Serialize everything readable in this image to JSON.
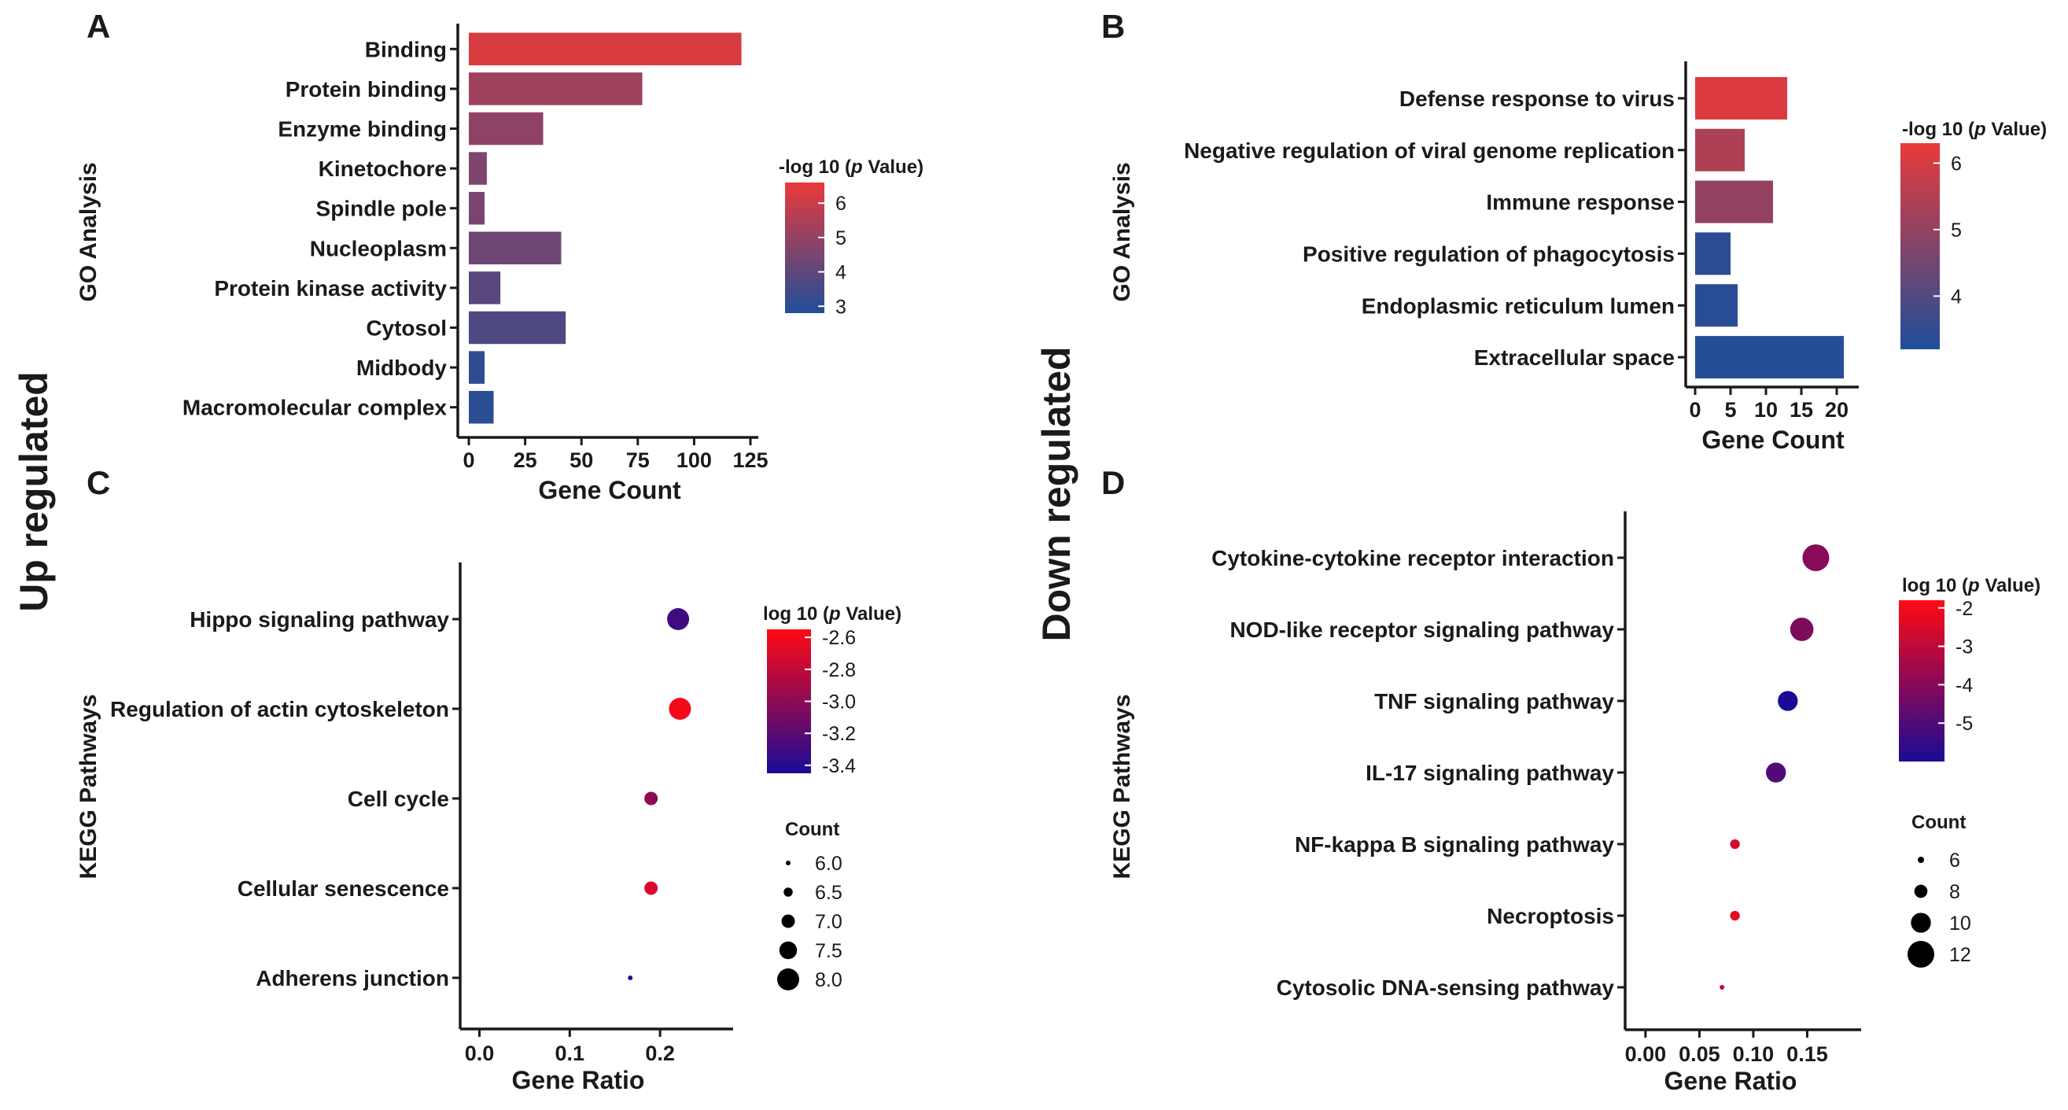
{
  "side_labels": {
    "up": {
      "text": "Up regulated",
      "color": "#ee2222"
    },
    "down": {
      "text": "Down regulated",
      "color": "#14306e"
    }
  },
  "panels": [
    {
      "letter": "A",
      "chart_data": {
        "type": "bar",
        "orientation": "horizontal",
        "categories": [
          "Binding",
          "Protein binding",
          "Enzyme binding",
          "Kinetochore",
          "Spindle pole",
          "Nucleoplasm",
          "Protein kinase activity",
          "Cytosol",
          "Midbody",
          "Macromolecular complex"
        ],
        "values": [
          121,
          77,
          33,
          8,
          7,
          41,
          14,
          43,
          7,
          11
        ],
        "color_values": [
          6.3,
          5.2,
          4.9,
          4.6,
          4.5,
          4.3,
          3.9,
          3.7,
          3.1,
          3.0
        ],
        "xlabel": "Gene Count",
        "ylabel": "GO Analysis",
        "xlim": [
          0,
          125
        ],
        "xticks": [
          0,
          25,
          50,
          75,
          100,
          125
        ],
        "legend": {
          "title_pre": "-log 10 (",
          "title_it": "p",
          "title_post": " Value)",
          "range": [
            2.8,
            6.6
          ],
          "ticks": [
            6,
            5,
            4,
            3
          ]
        },
        "colors": {
          "high": "#e83a3a",
          "low": "#1f4e99"
        }
      }
    },
    {
      "letter": "B",
      "chart_data": {
        "type": "bar",
        "orientation": "horizontal",
        "categories": [
          "Defense response to virus",
          "Negative regulation of viral genome replication",
          "Immune response",
          "Positive regulation of phagocytosis",
          "Endoplasmic reticulum lumen",
          "Extracellular space"
        ],
        "values": [
          13,
          7,
          11,
          5,
          6,
          21
        ],
        "color_values": [
          6.1,
          5.4,
          5.0,
          3.4,
          3.35,
          3.3
        ],
        "xlabel": "Gene Count",
        "ylabel": "GO Analysis",
        "xlim": [
          0,
          22
        ],
        "xticks": [
          0,
          5,
          10,
          15,
          20
        ],
        "legend": {
          "title_pre": "-log 10 (",
          "title_it": "p",
          "title_post": " Value)",
          "range": [
            3.2,
            6.3
          ],
          "ticks": [
            6,
            5,
            4
          ]
        },
        "colors": {
          "high": "#e83a3a",
          "low": "#1f4e99"
        }
      }
    },
    {
      "letter": "C",
      "chart_data": {
        "type": "scatter",
        "categories": [
          "Hippo signaling pathway",
          "Regulation of actin cytoskeleton",
          "Cell cycle",
          "Cellular senescence",
          "Adherens junction"
        ],
        "x": [
          0.22,
          0.222,
          0.19,
          0.19,
          0.167
        ],
        "color_values": [
          -3.3,
          -2.6,
          -3.0,
          -2.7,
          -3.4
        ],
        "counts": [
          8.0,
          8.0,
          7.0,
          7.0,
          6.0
        ],
        "xlabel": "Gene Ratio",
        "ylabel": "KEGG Pathways",
        "xlim": [
          -0.01,
          0.28
        ],
        "xticks": [
          0.0,
          0.1,
          0.2
        ],
        "xtick_labels": [
          "0.0",
          "0.1",
          "0.2"
        ],
        "legend": {
          "title_pre": "log 10 (",
          "title_it": "p",
          "title_post": " Value)",
          "range": [
            -3.45,
            -2.55
          ],
          "ticks": [
            -2.6,
            -2.8,
            -3.0,
            -3.2,
            -3.4
          ],
          "tick_labels": [
            "-2.6",
            "-2.8",
            "-3.0",
            "-3.2",
            "-3.4"
          ]
        },
        "size_legend": {
          "title": "Count",
          "values": [
            6.0,
            6.5,
            7.0,
            7.5,
            8.0
          ],
          "labels": [
            "6.0",
            "6.5",
            "7.0",
            "7.5",
            "8.0"
          ]
        },
        "colors": {
          "high": "#ff0a14",
          "low": "#1a0b96"
        }
      }
    },
    {
      "letter": "D",
      "chart_data": {
        "type": "scatter",
        "categories": [
          "Cytokine-cytokine receptor interaction",
          "NOD-like receptor signaling pathway",
          "TNF signaling pathway",
          "IL-17 signaling pathway",
          "NF-kappa B signaling pathway",
          "Necroptosis",
          "Cytosolic DNA-sensing pathway"
        ],
        "x": [
          0.158,
          0.145,
          0.132,
          0.121,
          0.083,
          0.083,
          0.071
        ],
        "color_values": [
          -4.0,
          -4.2,
          -6.0,
          -5.0,
          -2.6,
          -2.2,
          -2.8
        ],
        "counts": [
          12,
          11,
          10,
          10,
          7,
          7,
          5
        ],
        "xlabel": "Gene Ratio",
        "ylabel": "KEGG Pathways",
        "xlim": [
          -0.005,
          0.2
        ],
        "xticks": [
          0.0,
          0.05,
          0.1,
          0.15
        ],
        "xtick_labels": [
          "0.00",
          "0.05",
          "0.10",
          "0.15"
        ],
        "legend": {
          "title_pre": "log 10 (",
          "title_it": "p",
          "title_post": " Value)",
          "range": [
            -6.0,
            -1.8
          ],
          "ticks": [
            -2,
            -3,
            -4,
            -5
          ],
          "tick_labels": [
            "-2",
            "-3",
            "-4",
            "-5"
          ]
        },
        "size_legend": {
          "title": "Count",
          "values": [
            6,
            8,
            10,
            12
          ],
          "labels": [
            "6",
            "8",
            "10",
            "12"
          ]
        },
        "colors": {
          "high": "#ff0a14",
          "low": "#1a0b96"
        }
      }
    }
  ]
}
